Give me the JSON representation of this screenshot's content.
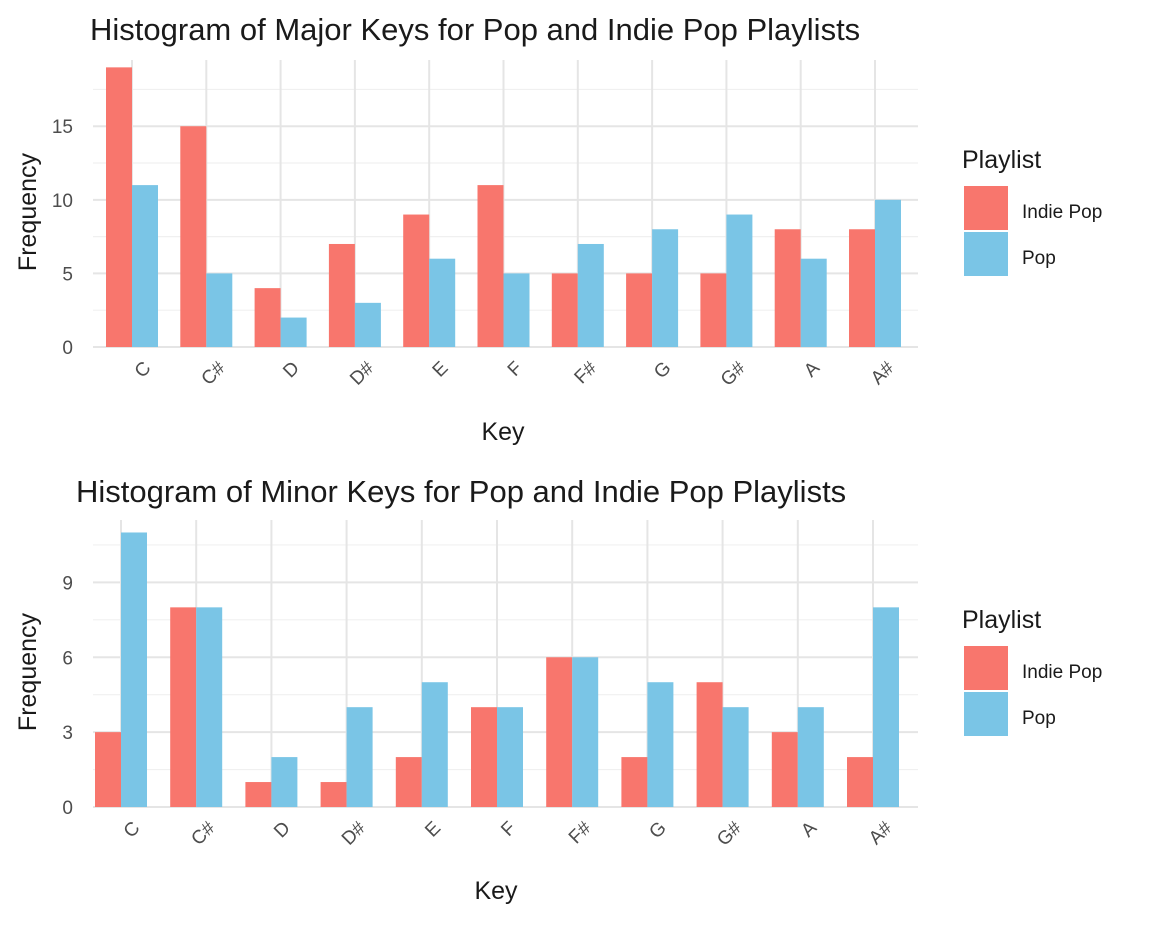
{
  "chart_data": [
    {
      "type": "bar",
      "title": "Histogram of Major Keys for Pop and Indie Pop Playlists",
      "xlabel": "Key",
      "ylabel": "Frequency",
      "categories": [
        "C",
        "C#",
        "D",
        "D#",
        "E",
        "F",
        "F#",
        "G",
        "G#",
        "A",
        "A#"
      ],
      "series": [
        {
          "name": "Indie Pop",
          "color": "#F8766D",
          "values": [
            19,
            15,
            4,
            7,
            9,
            11,
            5,
            5,
            5,
            8,
            8
          ]
        },
        {
          "name": "Pop",
          "color": "#7AC5E6",
          "values": [
            11,
            5,
            2,
            3,
            6,
            5,
            7,
            8,
            9,
            6,
            10
          ]
        }
      ],
      "ylim": [
        0,
        19.5
      ],
      "yticks": [
        0,
        5,
        10,
        15
      ],
      "legend": {
        "title": "Playlist",
        "position": "right"
      },
      "grid": true
    },
    {
      "type": "bar",
      "title": "Histogram of Minor Keys for Pop and Indie Pop Playlists",
      "xlabel": "Key",
      "ylabel": "Frequency",
      "categories": [
        "C",
        "C#",
        "D",
        "D#",
        "E",
        "F",
        "F#",
        "G",
        "G#",
        "A",
        "A#"
      ],
      "series": [
        {
          "name": "Indie Pop",
          "color": "#F8766D",
          "values": [
            3,
            8,
            1,
            1,
            2,
            4,
            6,
            2,
            5,
            3,
            2
          ]
        },
        {
          "name": "Pop",
          "color": "#7AC5E6",
          "values": [
            11,
            8,
            2,
            4,
            5,
            4,
            6,
            5,
            4,
            4,
            8
          ]
        }
      ],
      "ylim": [
        0,
        11.5
      ],
      "yticks": [
        0,
        3,
        6,
        9
      ],
      "legend": {
        "title": "Playlist",
        "position": "right"
      },
      "grid": true
    }
  ]
}
